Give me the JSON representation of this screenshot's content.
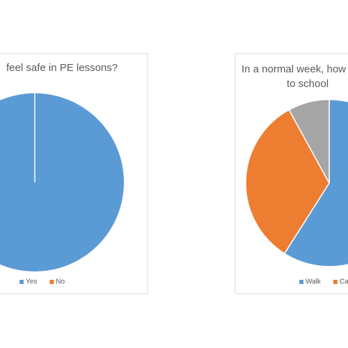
{
  "chart_data": [
    {
      "type": "pie",
      "title": [
        "feel safe in PE lessons?"
      ],
      "categories": [
        "Yes",
        "No"
      ],
      "values": [
        100,
        0
      ],
      "colors": [
        "#5b9bd5",
        "#ed7d31"
      ]
    },
    {
      "type": "pie",
      "title": [
        "In a normal week, how",
        "to school"
      ],
      "categories": [
        "Walk",
        "Car",
        null
      ],
      "values": [
        59,
        33,
        8
      ],
      "colors": [
        "#5b9bd5",
        "#ed7d31",
        "#a5a5a5"
      ]
    }
  ]
}
